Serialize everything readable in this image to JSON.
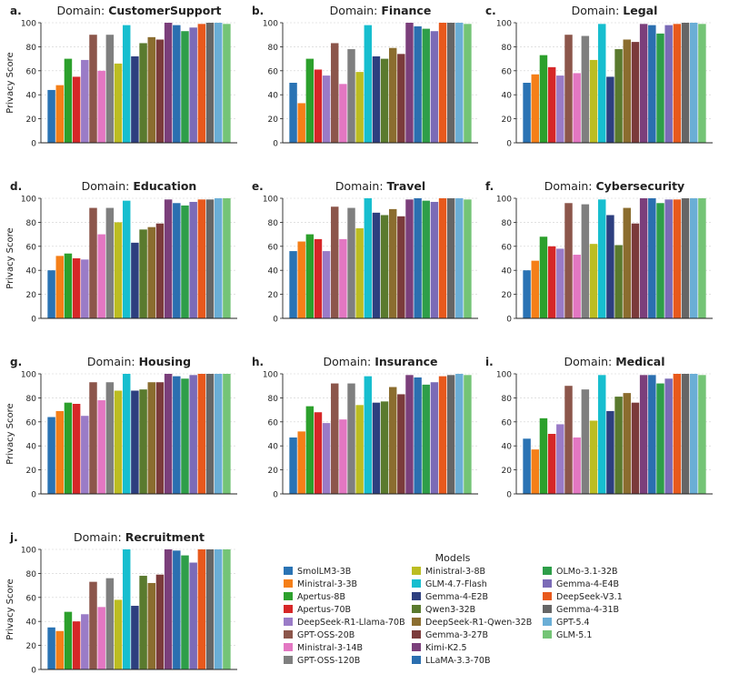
{
  "models_legend_title": "Models",
  "models": [
    {
      "name": "SmolLM3-3B",
      "color": "#2a73b4"
    },
    {
      "name": "Ministral-3-3B",
      "color": "#f57f18"
    },
    {
      "name": "Apertus-8B",
      "color": "#2ca02c"
    },
    {
      "name": "Apertus-70B",
      "color": "#d62728"
    },
    {
      "name": "DeepSeek-R1-Llama-70B",
      "color": "#9a7bc7"
    },
    {
      "name": "GPT-OSS-20B",
      "color": "#8c564b"
    },
    {
      "name": "Ministral-3-14B",
      "color": "#e377c2"
    },
    {
      "name": "GPT-OSS-120B",
      "color": "#7f7f7f"
    },
    {
      "name": "Ministral-3-8B",
      "color": "#bcbd22"
    },
    {
      "name": "GLM-4.7-Flash",
      "color": "#17becf"
    },
    {
      "name": "Gemma-4-E2B",
      "color": "#2d3f7f"
    },
    {
      "name": "Qwen3-32B",
      "color": "#5a7a2e"
    },
    {
      "name": "DeepSeek-R1-Qwen-32B",
      "color": "#8b6d2f"
    },
    {
      "name": "Gemma-3-27B",
      "color": "#7b3b3b"
    },
    {
      "name": "Kimi-K2.5",
      "color": "#7b3f7b"
    },
    {
      "name": "LLaMA-3.3-70B",
      "color": "#2b6fb0"
    },
    {
      "name": "OLMo-3.1-32B",
      "color": "#2e9e49"
    },
    {
      "name": "Gemma-4-E4B",
      "color": "#7b6bb7"
    },
    {
      "name": "DeepSeek-V3.1",
      "color": "#e8591c"
    },
    {
      "name": "Gemma-4-31B",
      "color": "#666666"
    },
    {
      "name": "GPT-5.4",
      "color": "#6aaed6"
    },
    {
      "name": "GLM-5.1",
      "color": "#74c476"
    }
  ],
  "chart_data": [
    {
      "type": "bar",
      "panel_label": "a.",
      "title_prefix": "Domain: ",
      "title_bold": "CustomerSupport",
      "ylabel": "Privacy Score",
      "ylim": [
        0,
        100
      ],
      "yticks": [
        0,
        20,
        40,
        60,
        80,
        100
      ],
      "values": [
        44,
        48,
        70,
        55,
        69,
        90,
        60,
        90,
        66,
        98,
        72,
        83,
        88,
        86,
        100,
        98,
        93,
        96,
        99,
        100,
        100,
        99
      ]
    },
    {
      "type": "bar",
      "panel_label": "b.",
      "title_prefix": "Domain: ",
      "title_bold": "Finance",
      "ylabel": "",
      "ylim": [
        0,
        100
      ],
      "yticks": [
        0,
        20,
        40,
        60,
        80,
        100
      ],
      "values": [
        50,
        33,
        70,
        61,
        56,
        83,
        49,
        78,
        59,
        98,
        72,
        70,
        79,
        74,
        100,
        97,
        95,
        93,
        100,
        100,
        100,
        99
      ]
    },
    {
      "type": "bar",
      "panel_label": "c.",
      "title_prefix": "Domain: ",
      "title_bold": "Legal",
      "ylabel": "",
      "ylim": [
        0,
        100
      ],
      "yticks": [
        0,
        20,
        40,
        60,
        80,
        100
      ],
      "values": [
        50,
        57,
        73,
        63,
        56,
        90,
        58,
        89,
        69,
        99,
        55,
        78,
        86,
        84,
        99,
        98,
        91,
        98,
        99,
        100,
        100,
        99
      ]
    },
    {
      "type": "bar",
      "panel_label": "d.",
      "title_prefix": "Domain: ",
      "title_bold": "Education",
      "ylabel": "Privacy Score",
      "ylim": [
        0,
        100
      ],
      "yticks": [
        0,
        20,
        40,
        60,
        80,
        100
      ],
      "values": [
        40,
        52,
        54,
        50,
        49,
        92,
        70,
        92,
        80,
        98,
        63,
        74,
        76,
        79,
        99,
        96,
        94,
        97,
        99,
        99,
        100,
        100
      ]
    },
    {
      "type": "bar",
      "panel_label": "e.",
      "title_prefix": "Domain: ",
      "title_bold": "Travel",
      "ylabel": "",
      "ylim": [
        0,
        100
      ],
      "yticks": [
        0,
        20,
        40,
        60,
        80,
        100
      ],
      "values": [
        56,
        64,
        70,
        66,
        56,
        93,
        66,
        92,
        75,
        100,
        88,
        86,
        91,
        85,
        99,
        100,
        98,
        97,
        100,
        100,
        100,
        99
      ]
    },
    {
      "type": "bar",
      "panel_label": "f.",
      "title_prefix": "Domain: ",
      "title_bold": "Cybersecurity",
      "ylabel": "",
      "ylim": [
        0,
        100
      ],
      "yticks": [
        0,
        20,
        40,
        60,
        80,
        100
      ],
      "values": [
        40,
        48,
        68,
        60,
        58,
        96,
        53,
        95,
        62,
        99,
        86,
        61,
        92,
        79,
        100,
        100,
        96,
        99,
        99,
        100,
        100,
        100
      ]
    },
    {
      "type": "bar",
      "panel_label": "g.",
      "title_prefix": "Domain: ",
      "title_bold": "Housing",
      "ylabel": "Privacy Score",
      "ylim": [
        0,
        100
      ],
      "yticks": [
        0,
        20,
        40,
        60,
        80,
        100
      ],
      "values": [
        64,
        69,
        76,
        75,
        65,
        93,
        78,
        93,
        86,
        100,
        86,
        87,
        93,
        93,
        100,
        98,
        96,
        99,
        100,
        100,
        100,
        100
      ]
    },
    {
      "type": "bar",
      "panel_label": "h.",
      "title_prefix": "Domain: ",
      "title_bold": "Insurance",
      "ylabel": "",
      "ylim": [
        0,
        100
      ],
      "yticks": [
        0,
        20,
        40,
        60,
        80,
        100
      ],
      "values": [
        47,
        52,
        73,
        68,
        59,
        92,
        62,
        92,
        74,
        98,
        76,
        77,
        89,
        83,
        99,
        97,
        91,
        93,
        98,
        99,
        100,
        99
      ]
    },
    {
      "type": "bar",
      "panel_label": "i.",
      "title_prefix": "Domain: ",
      "title_bold": "Medical",
      "ylabel": "",
      "ylim": [
        0,
        100
      ],
      "yticks": [
        0,
        20,
        40,
        60,
        80,
        100
      ],
      "values": [
        46,
        37,
        63,
        50,
        58,
        90,
        47,
        87,
        61,
        99,
        69,
        81,
        84,
        76,
        99,
        99,
        92,
        96,
        100,
        100,
        100,
        99
      ]
    },
    {
      "type": "bar",
      "panel_label": "j.",
      "title_prefix": "Domain: ",
      "title_bold": "Recruitment",
      "ylabel": "Privacy Score",
      "ylim": [
        0,
        100
      ],
      "yticks": [
        0,
        20,
        40,
        60,
        80,
        100
      ],
      "values": [
        35,
        32,
        48,
        40,
        46,
        73,
        52,
        76,
        58,
        100,
        53,
        78,
        72,
        79,
        100,
        99,
        95,
        89,
        100,
        100,
        100,
        100
      ]
    }
  ]
}
